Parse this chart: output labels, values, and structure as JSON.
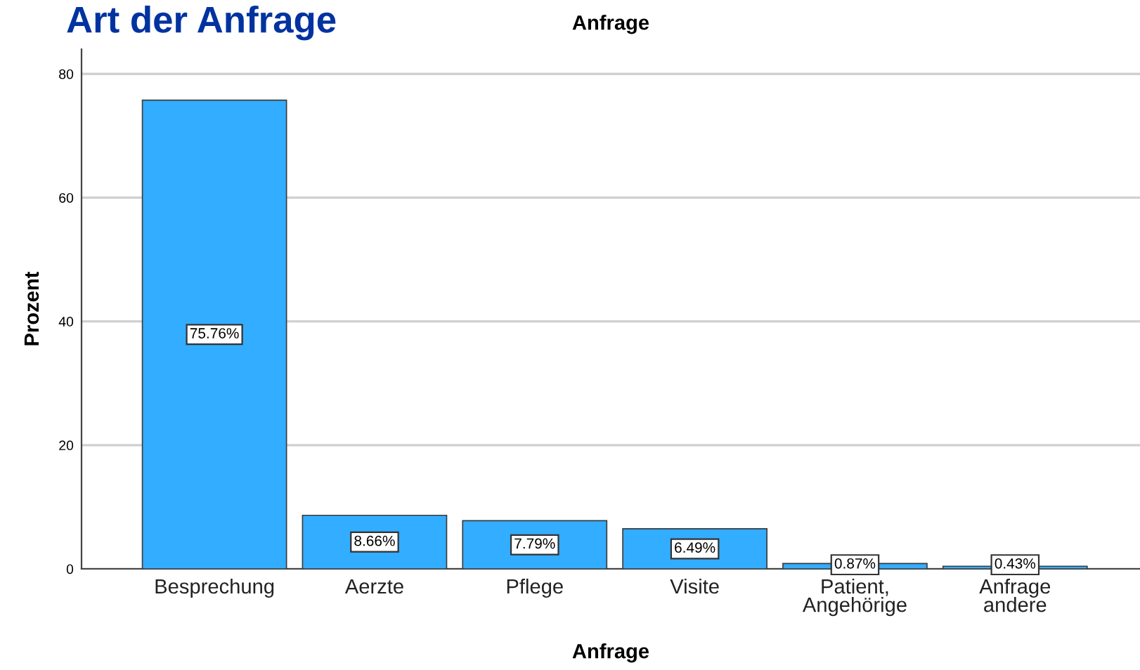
{
  "chart_data": {
    "type": "bar",
    "title": "Art der Anfrage",
    "subtitle": "Anfrage",
    "xlabel": "Anfrage",
    "ylabel": "Prozent",
    "categories": [
      "Besprechung",
      "Aerzte",
      "Pflege",
      "Visite",
      "Patient,\nAngehörige",
      "Anfrage\nandere"
    ],
    "values": [
      75.76,
      8.66,
      7.79,
      6.49,
      0.87,
      0.43
    ],
    "value_labels": [
      "75.76%",
      "8.66%",
      "7.79%",
      "6.49%",
      "0.87%",
      "0.43%"
    ],
    "color": "#33adff",
    "ylim": [
      0,
      84
    ],
    "yticks": [
      0,
      20,
      40,
      60,
      80
    ],
    "grid": "y",
    "legend": false
  }
}
